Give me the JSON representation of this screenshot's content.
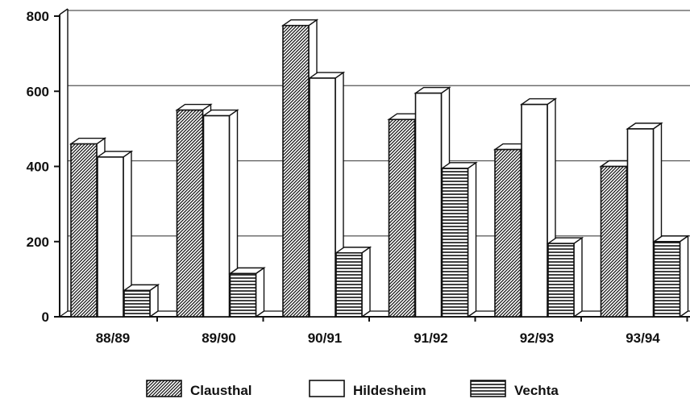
{
  "chart_data": {
    "type": "bar",
    "style": "3d",
    "categories": [
      "88/89",
      "89/90",
      "90/91",
      "91/92",
      "92/93",
      "93/94"
    ],
    "series": [
      {
        "name": "Clausthal",
        "pattern": "diagonal-hatch",
        "values": [
          460,
          550,
          775,
          525,
          445,
          400
        ]
      },
      {
        "name": "Hildesheim",
        "pattern": "white",
        "values": [
          425,
          535,
          635,
          595,
          565,
          500
        ]
      },
      {
        "name": "Vechta",
        "pattern": "horizontal-lines",
        "values": [
          70,
          115,
          170,
          395,
          195,
          200
        ]
      }
    ],
    "yticks": [
      0,
      200,
      400,
      600,
      800
    ],
    "ylim": [
      0,
      800
    ],
    "grid": true,
    "legend_position": "bottom-center",
    "colors": {
      "stroke": "#111111",
      "background": "#ffffff",
      "grid": "#555555"
    }
  }
}
